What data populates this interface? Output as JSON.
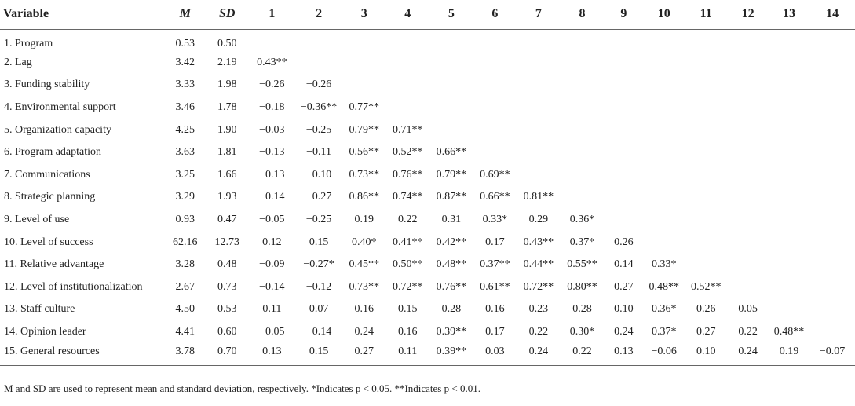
{
  "table": {
    "headers": [
      "Variable",
      "M",
      "SD",
      "1",
      "2",
      "3",
      "4",
      "5",
      "6",
      "7",
      "8",
      "9",
      "10",
      "11",
      "12",
      "13",
      "14"
    ],
    "rows": [
      [
        "1. Program",
        "0.53",
        "0.50",
        "",
        "",
        "",
        "",
        "",
        "",
        "",
        "",
        "",
        "",
        "",
        "",
        "",
        ""
      ],
      [
        "2. Lag",
        "3.42",
        "2.19",
        "0.43**",
        "",
        "",
        "",
        "",
        "",
        "",
        "",
        "",
        "",
        "",
        "",
        "",
        ""
      ],
      [
        "3. Funding stability",
        "3.33",
        "1.98",
        "−0.26",
        "−0.26",
        "",
        "",
        "",
        "",
        "",
        "",
        "",
        "",
        "",
        "",
        "",
        ""
      ],
      [
        "4. Environmental support",
        "3.46",
        "1.78",
        "−0.18",
        "−0.36**",
        "0.77**",
        "",
        "",
        "",
        "",
        "",
        "",
        "",
        "",
        "",
        "",
        ""
      ],
      [
        "5. Organization capacity",
        "4.25",
        "1.90",
        "−0.03",
        "−0.25",
        "0.79**",
        "0.71**",
        "",
        "",
        "",
        "",
        "",
        "",
        "",
        "",
        "",
        ""
      ],
      [
        "6. Program adaptation",
        "3.63",
        "1.81",
        "−0.13",
        "−0.11",
        "0.56**",
        "0.52**",
        "0.66**",
        "",
        "",
        "",
        "",
        "",
        "",
        "",
        "",
        ""
      ],
      [
        "7. Communications",
        "3.25",
        "1.66",
        "−0.13",
        "−0.10",
        "0.73**",
        "0.76**",
        "0.79**",
        "0.69**",
        "",
        "",
        "",
        "",
        "",
        "",
        "",
        ""
      ],
      [
        "8. Strategic planning",
        "3.29",
        "1.93",
        "−0.14",
        "−0.27",
        "0.86**",
        "0.74**",
        "0.87**",
        "0.66**",
        "0.81**",
        "",
        "",
        "",
        "",
        "",
        "",
        ""
      ],
      [
        "9. Level of use",
        "0.93",
        "0.47",
        "−0.05",
        "−0.25",
        "0.19",
        "0.22",
        "0.31",
        "0.33*",
        "0.29",
        "0.36*",
        "",
        "",
        "",
        "",
        "",
        ""
      ],
      [
        "10. Level of success",
        "62.16",
        "12.73",
        "0.12",
        "0.15",
        "0.40*",
        "0.41**",
        "0.42**",
        "0.17",
        "0.43**",
        "0.37*",
        "0.26",
        "",
        "",
        "",
        "",
        ""
      ],
      [
        "11. Relative advantage",
        "3.28",
        "0.48",
        "−0.09",
        "−0.27*",
        "0.45**",
        "0.50**",
        "0.48**",
        "0.37**",
        "0.44**",
        "0.55**",
        "0.14",
        "0.33*",
        "",
        "",
        "",
        ""
      ],
      [
        "12. Level of institutionalization",
        "2.67",
        "0.73",
        "−0.14",
        "−0.12",
        "0.73**",
        "0.72**",
        "0.76**",
        "0.61**",
        "0.72**",
        "0.80**",
        "0.27",
        "0.48**",
        "0.52**",
        "",
        "",
        ""
      ],
      [
        "13. Staff culture",
        "4.50",
        "0.53",
        "0.11",
        "0.07",
        "0.16",
        "0.15",
        "0.28",
        "0.16",
        "0.23",
        "0.28",
        "0.10",
        "0.36*",
        "0.26",
        "0.05",
        "",
        ""
      ],
      [
        "14. Opinion leader",
        "4.41",
        "0.60",
        "−0.05",
        "−0.14",
        "0.24",
        "0.16",
        "0.39**",
        "0.17",
        "0.22",
        "0.30*",
        "0.24",
        "0.37*",
        "0.27",
        "0.22",
        "0.48**",
        ""
      ],
      [
        "15. General resources",
        "3.78",
        "0.70",
        "0.13",
        "0.15",
        "0.27",
        "0.11",
        "0.39**",
        "0.03",
        "0.24",
        "0.22",
        "0.13",
        "−0.06",
        "0.10",
        "0.24",
        "0.19",
        "−0.07"
      ]
    ]
  },
  "footnote": "M and SD are used to represent mean and standard deviation, respectively. *Indicates p < 0.05. **Indicates p < 0.01."
}
